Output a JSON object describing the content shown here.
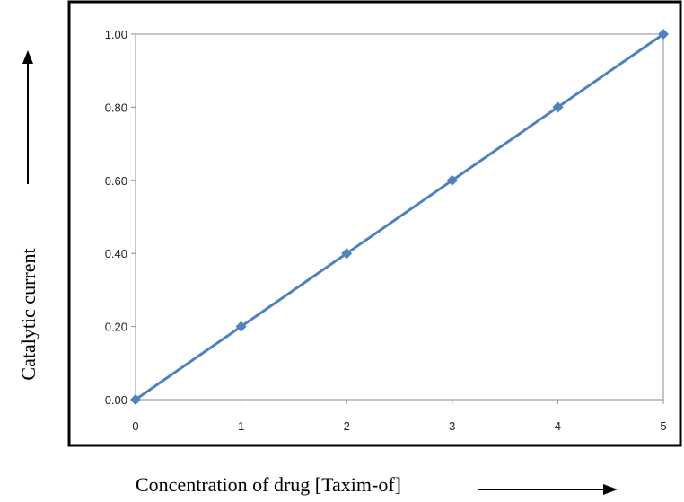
{
  "chart_data": {
    "type": "line",
    "title": "",
    "xlabel": "Concentration of drug [Taxim-of]",
    "ylabel": "Catalytic current",
    "x": [
      0,
      1,
      2,
      3,
      4,
      5
    ],
    "series": [
      {
        "values": [
          0.0,
          0.2,
          0.4,
          0.6,
          0.8,
          1.0
        ]
      }
    ],
    "xlim": [
      0,
      5
    ],
    "ylim": [
      0,
      1
    ],
    "xticks": [
      "0",
      "1",
      "2",
      "3",
      "4",
      "5"
    ],
    "yticks": [
      "0.00",
      "0.20",
      "0.40",
      "0.60",
      "0.80",
      "1.00"
    ],
    "grid": false,
    "legend": "none",
    "marker": "diamond",
    "colors": {
      "series": "#4F81BD",
      "frame": "#000000",
      "plot_border": "#8C8C8C"
    }
  }
}
